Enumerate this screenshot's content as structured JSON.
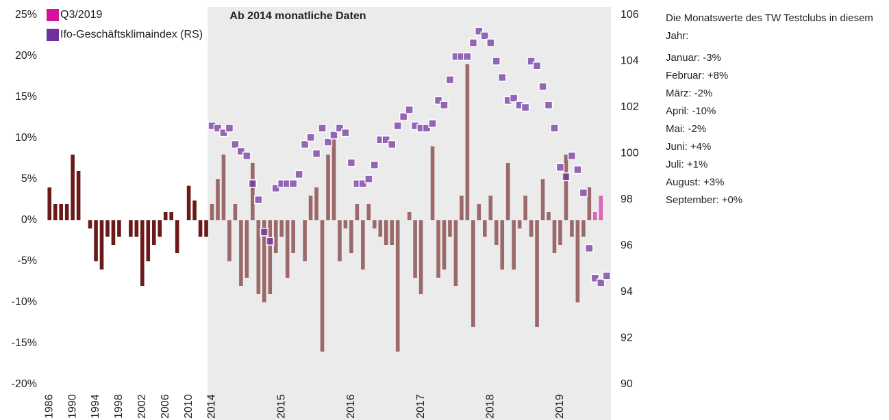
{
  "chart_data": {
    "type": "bar",
    "annotation": "Ab 2014 monatliche Daten",
    "categories": [
      "1986",
      null,
      null,
      null,
      "1990",
      null,
      null,
      null,
      "1994",
      null,
      null,
      null,
      "1998",
      null,
      null,
      null,
      "2002",
      null,
      null,
      null,
      "2006",
      null,
      null,
      null,
      "2010",
      null,
      null,
      null,
      "2014",
      null,
      null,
      null,
      null,
      null,
      null,
      null,
      null,
      null,
      null,
      null,
      "2015",
      null,
      null,
      null,
      null,
      null,
      null,
      null,
      null,
      null,
      null,
      null,
      "2016",
      null,
      null,
      null,
      null,
      null,
      null,
      null,
      null,
      null,
      null,
      null,
      "2017",
      null,
      null,
      null,
      null,
      null,
      null,
      null,
      null,
      null,
      null,
      null,
      "2018",
      null,
      null,
      null,
      null,
      null,
      null,
      null,
      null,
      null,
      null,
      null,
      "2019",
      null,
      null,
      null,
      null,
      null,
      null,
      null,
      null
    ],
    "series": [
      {
        "color": "#6b1a1a",
        "values": [
          4,
          2,
          2,
          2,
          8,
          6,
          0,
          -1,
          -5,
          -6,
          -2,
          -3,
          -2,
          0,
          -2,
          -2,
          -8,
          -5,
          -3,
          -2,
          1,
          1,
          -4,
          0,
          4.2,
          2.4,
          -2,
          -2,
          2,
          5,
          8,
          -5,
          2,
          -8,
          -7,
          7,
          -9,
          -10,
          -9,
          -4,
          -2,
          -7,
          -4,
          0,
          -5,
          3,
          4,
          -16,
          8,
          10,
          -5,
          -1,
          -4,
          2,
          -6,
          2,
          -1,
          -2,
          -3,
          -3,
          -16,
          0,
          1,
          -7,
          -9,
          0,
          9,
          -7,
          -6,
          -2,
          -8,
          3,
          19,
          -13,
          2,
          -2,
          3,
          -3,
          -6,
          7,
          -6,
          -1,
          3,
          -2,
          -13,
          5,
          1,
          -4,
          -3,
          8,
          -2,
          -10,
          -2,
          4,
          null,
          null,
          null
        ]
      },
      {
        "name": "Q3/2019",
        "color": "#d4129e",
        "values": [
          null,
          null,
          null,
          null,
          null,
          null,
          null,
          null,
          null,
          null,
          null,
          null,
          null,
          null,
          null,
          null,
          null,
          null,
          null,
          null,
          null,
          null,
          null,
          null,
          null,
          null,
          null,
          null,
          null,
          null,
          null,
          null,
          null,
          null,
          null,
          null,
          null,
          null,
          null,
          null,
          null,
          null,
          null,
          null,
          null,
          null,
          null,
          null,
          null,
          null,
          null,
          null,
          null,
          null,
          null,
          null,
          null,
          null,
          null,
          null,
          null,
          null,
          null,
          null,
          null,
          null,
          null,
          null,
          null,
          null,
          null,
          null,
          null,
          null,
          null,
          null,
          null,
          null,
          null,
          null,
          null,
          null,
          null,
          null,
          null,
          null,
          null,
          null,
          null,
          null,
          null,
          null,
          null,
          null,
          1,
          3,
          0
        ]
      },
      {
        "name": "Ifo-Geschäftsklimaindex (RS)",
        "color": "#7030a0",
        "axis": "y2",
        "marker": "square",
        "values": [
          null,
          null,
          null,
          null,
          null,
          null,
          null,
          null,
          null,
          null,
          null,
          null,
          null,
          null,
          null,
          null,
          null,
          null,
          null,
          null,
          null,
          null,
          null,
          null,
          null,
          null,
          null,
          null,
          101.2,
          101.1,
          100.9,
          101.1,
          100.4,
          100.1,
          99.9,
          98.7,
          98.0,
          96.6,
          96.2,
          98.5,
          98.7,
          98.7,
          98.7,
          99.1,
          100.4,
          100.7,
          100.0,
          101.1,
          100.5,
          100.8,
          101.1,
          100.9,
          99.6,
          98.7,
          98.7,
          98.9,
          99.5,
          100.6,
          100.6,
          100.4,
          101.2,
          101.6,
          101.9,
          101.2,
          101.1,
          101.1,
          101.3,
          102.3,
          102.1,
          103.2,
          104.2,
          104.2,
          104.2,
          104.8,
          105.3,
          105.1,
          104.8,
          104.0,
          103.3,
          102.3,
          102.4,
          102.1,
          102.0,
          104.0,
          103.8,
          102.9,
          102.1,
          101.1,
          99.4,
          99.0,
          99.9,
          99.3,
          98.3,
          95.9,
          94.6,
          94.4,
          94.7
        ]
      }
    ],
    "ylim": [
      -20,
      25
    ],
    "yticks": [
      {
        "value": -20,
        "label": "-20%"
      },
      {
        "value": -15,
        "label": "-15%"
      },
      {
        "value": -10,
        "label": "-10%"
      },
      {
        "value": -5,
        "label": "-5%"
      },
      {
        "value": 0,
        "label": "0%"
      },
      {
        "value": 5,
        "label": "5%"
      },
      {
        "value": 10,
        "label": "10%"
      },
      {
        "value": 15,
        "label": "15%"
      },
      {
        "value": 20,
        "label": "20%"
      },
      {
        "value": 25,
        "label": "25%"
      }
    ],
    "y2lim": [
      90,
      106
    ],
    "y2ticks": [
      90,
      92,
      94,
      96,
      98,
      100,
      102,
      104,
      106
    ],
    "legend": "top-left",
    "grid": false
  },
  "panel": {
    "intro": "Die Monatswerte des TW Testclubs in diesem Jahr:",
    "items": [
      "Januar: -3%",
      "Februar: +8%",
      "März: -2%",
      "April: -10%",
      "Mai: -2%",
      "Juni: +4%",
      "Juli: +1%",
      "August: +3%",
      "September: +0%"
    ]
  }
}
